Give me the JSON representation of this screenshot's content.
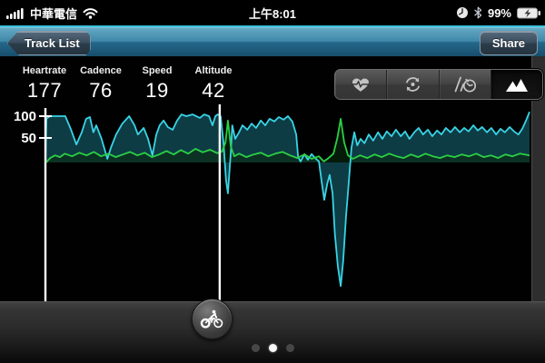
{
  "status_bar": {
    "carrier": "中華電信",
    "time": "上午8:01",
    "battery_percent": "99%"
  },
  "nav_bar": {
    "back_button": "Track List",
    "share_button": "Share"
  },
  "metrics": [
    {
      "label": "Heartrate",
      "value": "177"
    },
    {
      "label": "Cadence",
      "value": "76"
    },
    {
      "label": "Speed",
      "value": "19"
    },
    {
      "label": "Altitude",
      "value": "42"
    }
  ],
  "view_toggles": [
    {
      "name": "heartrate",
      "icon": "heart-pulse-icon",
      "selected": false
    },
    {
      "name": "cadence",
      "icon": "rotation-icon",
      "selected": false
    },
    {
      "name": "speed",
      "icon": "speedometer-icon",
      "selected": false
    },
    {
      "name": "altitude",
      "icon": "mountains-icon",
      "selected": true
    }
  ],
  "chart_data": {
    "type": "area",
    "y_axis": {
      "ticks": [
        {
          "label": "100",
          "value": 100
        },
        {
          "label": "50",
          "value": 50
        }
      ]
    },
    "cursor_x_pct": 36.0,
    "axis_color": "#ffffff",
    "series": [
      {
        "name": "altitude",
        "style": "cyan-area",
        "color": "#38d4e6",
        "fill": "#0f3f49",
        "fill_opacity": 0.95,
        "points": [
          [
            0,
            -10
          ],
          [
            0.2,
            94
          ],
          [
            0.9,
            100
          ],
          [
            4.1,
            100
          ],
          [
            5.3,
            69
          ],
          [
            6.4,
            35
          ],
          [
            7.5,
            63
          ],
          [
            8.4,
            94
          ],
          [
            9.2,
            98
          ],
          [
            9.9,
            63
          ],
          [
            10.5,
            79
          ],
          [
            11.6,
            48
          ],
          [
            12.8,
            2
          ],
          [
            13.5,
            27
          ],
          [
            14.6,
            58
          ],
          [
            15.9,
            83
          ],
          [
            17.3,
            100
          ],
          [
            18.4,
            79
          ],
          [
            19.1,
            58
          ],
          [
            20.3,
            73
          ],
          [
            21.2,
            48
          ],
          [
            22.1,
            10
          ],
          [
            22.9,
            58
          ],
          [
            23.6,
            79
          ],
          [
            24.4,
            90
          ],
          [
            25.3,
            75
          ],
          [
            26.3,
            69
          ],
          [
            27.2,
            90
          ],
          [
            28.1,
            104
          ],
          [
            29.1,
            100
          ],
          [
            30.4,
            104
          ],
          [
            31.9,
            96
          ],
          [
            32.8,
            104
          ],
          [
            33.8,
            100
          ],
          [
            34.5,
            79
          ],
          [
            35.1,
            100
          ],
          [
            35.6,
            104
          ],
          [
            36.2,
            100
          ],
          [
            36.8,
            38
          ],
          [
            37.3,
            -46
          ],
          [
            37.7,
            -77
          ],
          [
            38.3,
            17
          ],
          [
            38.6,
            79
          ],
          [
            39.2,
            48
          ],
          [
            40,
            63
          ],
          [
            40.7,
            79
          ],
          [
            41.7,
            69
          ],
          [
            42.6,
            83
          ],
          [
            43.5,
            73
          ],
          [
            44.5,
            90
          ],
          [
            45.4,
            79
          ],
          [
            46.3,
            94
          ],
          [
            47.3,
            88
          ],
          [
            48.2,
            98
          ],
          [
            49.2,
            92
          ],
          [
            50.1,
            100
          ],
          [
            51,
            88
          ],
          [
            51.8,
            58
          ],
          [
            52.2,
            6
          ],
          [
            52.7,
            -4
          ],
          [
            53.5,
            13
          ],
          [
            54.2,
            0
          ],
          [
            55,
            13
          ],
          [
            55.7,
            4
          ],
          [
            56.5,
            -4
          ],
          [
            57,
            -46
          ],
          [
            57.6,
            -92
          ],
          [
            58.2,
            -56
          ],
          [
            58.7,
            -35
          ],
          [
            59.3,
            -77
          ],
          [
            59.8,
            -171
          ],
          [
            60.4,
            -244
          ],
          [
            61,
            -290
          ],
          [
            61.5,
            -233
          ],
          [
            62.1,
            -129
          ],
          [
            62.7,
            -46
          ],
          [
            63.2,
            27
          ],
          [
            63.8,
            63
          ],
          [
            64.4,
            33
          ],
          [
            65.1,
            48
          ],
          [
            65.9,
            38
          ],
          [
            66.8,
            58
          ],
          [
            67.7,
            44
          ],
          [
            68.7,
            63
          ],
          [
            69.6,
            48
          ],
          [
            70.5,
            65
          ],
          [
            71.5,
            54
          ],
          [
            72.4,
            69
          ],
          [
            73.4,
            54
          ],
          [
            74.3,
            65
          ],
          [
            75.2,
            48
          ],
          [
            76.2,
            63
          ],
          [
            77.1,
            73
          ],
          [
            78,
            58
          ],
          [
            79,
            69
          ],
          [
            79.9,
            54
          ],
          [
            80.9,
            67
          ],
          [
            81.8,
            58
          ],
          [
            82.7,
            73
          ],
          [
            83.7,
            63
          ],
          [
            84.6,
            75
          ],
          [
            85.6,
            63
          ],
          [
            86.5,
            73
          ],
          [
            87.4,
            65
          ],
          [
            88.4,
            79
          ],
          [
            89.3,
            67
          ],
          [
            90.2,
            75
          ],
          [
            91.2,
            63
          ],
          [
            92.1,
            73
          ],
          [
            93.1,
            58
          ],
          [
            94,
            71
          ],
          [
            94.9,
            63
          ],
          [
            95.9,
            75
          ],
          [
            96.8,
            65
          ],
          [
            97.7,
            58
          ],
          [
            98.5,
            71
          ],
          [
            99.2,
            88
          ],
          [
            100,
            110
          ]
        ]
      },
      {
        "name": "green-line",
        "style": "green-line",
        "color": "#2bd044",
        "fill": "#0a2c10",
        "fill_opacity": 0.6,
        "points": [
          [
            0,
            -8
          ],
          [
            1,
            4
          ],
          [
            2,
            10
          ],
          [
            3,
            6
          ],
          [
            4,
            14
          ],
          [
            5.5,
            8
          ],
          [
            7,
            16
          ],
          [
            8.5,
            10
          ],
          [
            10,
            18
          ],
          [
            11.5,
            8
          ],
          [
            13,
            14
          ],
          [
            14.5,
            6
          ],
          [
            16,
            12
          ],
          [
            17.5,
            18
          ],
          [
            19,
            10
          ],
          [
            20.5,
            16
          ],
          [
            22,
            6
          ],
          [
            23.5,
            12
          ],
          [
            25,
            20
          ],
          [
            26.5,
            12
          ],
          [
            28,
            22
          ],
          [
            29.5,
            14
          ],
          [
            31,
            25
          ],
          [
            32.5,
            17
          ],
          [
            34,
            23
          ],
          [
            35.5,
            15
          ],
          [
            36.5,
            19
          ],
          [
            37.2,
            40
          ],
          [
            37.7,
            90
          ],
          [
            38.3,
            30
          ],
          [
            39,
            8
          ],
          [
            40,
            14
          ],
          [
            41.5,
            6
          ],
          [
            43,
            12
          ],
          [
            44.5,
            16
          ],
          [
            46,
            8
          ],
          [
            47.5,
            14
          ],
          [
            49,
            18
          ],
          [
            50.5,
            10
          ],
          [
            52,
            4
          ],
          [
            53.5,
            12
          ],
          [
            55,
            2
          ],
          [
            56.5,
            8
          ],
          [
            57.5,
            -4
          ],
          [
            58.5,
            4
          ],
          [
            59.5,
            14
          ],
          [
            60.3,
            50
          ],
          [
            61,
            94
          ],
          [
            61.7,
            40
          ],
          [
            62.5,
            10
          ],
          [
            63.5,
            2
          ],
          [
            65,
            10
          ],
          [
            66.5,
            4
          ],
          [
            68,
            12
          ],
          [
            69.5,
            6
          ],
          [
            71,
            14
          ],
          [
            72.5,
            8
          ],
          [
            74,
            4
          ],
          [
            75.5,
            12
          ],
          [
            77,
            6
          ],
          [
            78.5,
            14
          ],
          [
            80,
            8
          ],
          [
            81.5,
            4
          ],
          [
            83,
            10
          ],
          [
            84.5,
            6
          ],
          [
            86,
            12
          ],
          [
            87.5,
            8
          ],
          [
            89,
            14
          ],
          [
            90.5,
            6
          ],
          [
            92,
            10
          ],
          [
            93.5,
            4
          ],
          [
            95,
            12
          ],
          [
            96.5,
            8
          ],
          [
            98,
            14
          ],
          [
            100,
            10
          ]
        ]
      }
    ]
  },
  "pager": {
    "count": 3,
    "active_index": 1
  },
  "colors": {
    "nav_accent": "#38c3e0",
    "cyan_line": "#38d4e6",
    "green_line": "#2bd044",
    "area_fill": "#0f3f49",
    "panel_bg": "#010101",
    "frame_bg": "#2e2e2e"
  }
}
